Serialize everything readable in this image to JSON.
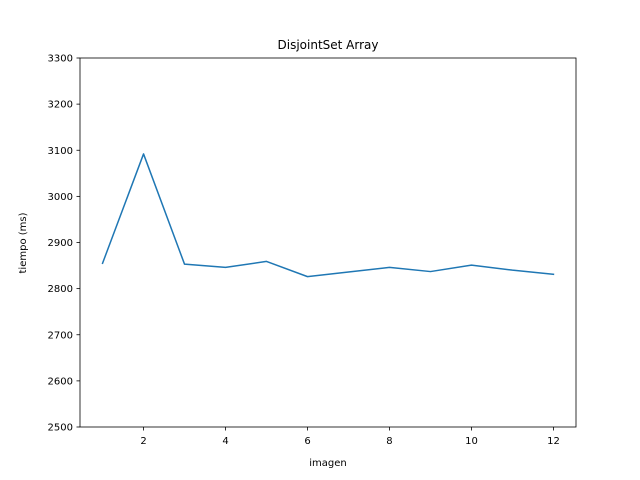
{
  "chart_data": {
    "type": "line",
    "title": "DisjointSet Array",
    "xlabel": "imagen",
    "ylabel": "tiempo (ms)",
    "x": [
      1,
      2,
      3,
      4,
      5,
      6,
      7,
      8,
      9,
      10,
      11,
      12
    ],
    "series": [
      {
        "values": [
          2855,
          3092,
          2853,
          2846,
          2859,
          2826,
          2836,
          2846,
          2837,
          2851,
          2840,
          2831
        ],
        "color": "#1f77b4"
      }
    ],
    "xlim": [
      0.45,
      12.55
    ],
    "ylim": [
      2500,
      3300
    ],
    "xticks": [
      2,
      4,
      6,
      8,
      10,
      12
    ],
    "yticks": [
      2500,
      2600,
      2700,
      2800,
      2900,
      3000,
      3100,
      3200,
      3300
    ],
    "grid": false
  }
}
